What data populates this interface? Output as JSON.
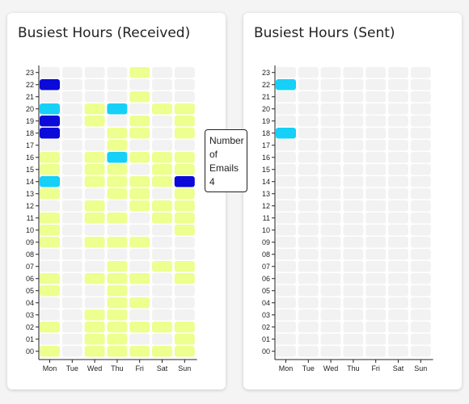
{
  "chart_data": [
    {
      "type": "heatmap",
      "title": "Busiest Hours (Received)",
      "x_categories": [
        "Mon",
        "Tue",
        "Wed",
        "Thu",
        "Fri",
        "Sat",
        "Sun"
      ],
      "y_categories": [
        "00",
        "01",
        "02",
        "03",
        "04",
        "05",
        "06",
        "07",
        "08",
        "09",
        "10",
        "11",
        "12",
        "13",
        "14",
        "15",
        "16",
        "17",
        "18",
        "19",
        "20",
        "21",
        "22",
        "23"
      ],
      "values": [
        [
          1,
          0,
          1,
          1,
          1,
          1,
          1
        ],
        [
          0,
          0,
          1,
          1,
          0,
          0,
          1
        ],
        [
          1,
          0,
          1,
          1,
          1,
          1,
          1
        ],
        [
          0,
          0,
          1,
          1,
          0,
          0,
          0
        ],
        [
          0,
          0,
          0,
          1,
          1,
          0,
          0
        ],
        [
          1,
          0,
          0,
          1,
          0,
          0,
          0
        ],
        [
          1,
          0,
          1,
          1,
          1,
          0,
          1
        ],
        [
          0,
          0,
          0,
          1,
          0,
          1,
          1
        ],
        [
          0,
          0,
          0,
          0,
          0,
          0,
          0
        ],
        [
          1,
          0,
          1,
          1,
          1,
          0,
          0
        ],
        [
          1,
          0,
          0,
          0,
          0,
          0,
          1
        ],
        [
          1,
          0,
          1,
          1,
          0,
          1,
          1
        ],
        [
          0,
          0,
          1,
          0,
          1,
          1,
          1
        ],
        [
          1,
          0,
          0,
          1,
          1,
          0,
          1
        ],
        [
          2,
          0,
          1,
          1,
          1,
          1,
          4
        ],
        [
          1,
          0,
          1,
          1,
          0,
          1,
          1
        ],
        [
          1,
          0,
          1,
          2,
          1,
          1,
          1
        ],
        [
          0,
          0,
          0,
          1,
          0,
          0,
          0
        ],
        [
          3,
          0,
          0,
          1,
          1,
          0,
          1
        ],
        [
          3,
          0,
          1,
          0,
          1,
          0,
          1
        ],
        [
          2,
          0,
          1,
          2,
          0,
          1,
          1
        ],
        [
          0,
          0,
          0,
          0,
          1,
          0,
          0
        ],
        [
          3,
          0,
          0,
          0,
          0,
          0,
          0
        ],
        [
          0,
          0,
          0,
          0,
          1,
          0,
          0
        ]
      ],
      "colors": {
        "empty": "#f2f2f2",
        "1": "#ecff8f",
        "2": "#16d0f7",
        "3": "#0b0ad9",
        "4": "#0b0ad9"
      },
      "grid": false
    },
    {
      "type": "heatmap",
      "title": "Busiest Hours (Sent)",
      "x_categories": [
        "Mon",
        "Tue",
        "Wed",
        "Thu",
        "Fri",
        "Sat",
        "Sun"
      ],
      "y_categories": [
        "00",
        "01",
        "02",
        "03",
        "04",
        "05",
        "06",
        "07",
        "08",
        "09",
        "10",
        "11",
        "12",
        "13",
        "14",
        "15",
        "16",
        "17",
        "18",
        "19",
        "20",
        "21",
        "22",
        "23"
      ],
      "values": [
        [
          0,
          0,
          0,
          0,
          0,
          0,
          0
        ],
        [
          0,
          0,
          0,
          0,
          0,
          0,
          0
        ],
        [
          0,
          0,
          0,
          0,
          0,
          0,
          0
        ],
        [
          0,
          0,
          0,
          0,
          0,
          0,
          0
        ],
        [
          0,
          0,
          0,
          0,
          0,
          0,
          0
        ],
        [
          0,
          0,
          0,
          0,
          0,
          0,
          0
        ],
        [
          0,
          0,
          0,
          0,
          0,
          0,
          0
        ],
        [
          0,
          0,
          0,
          0,
          0,
          0,
          0
        ],
        [
          0,
          0,
          0,
          0,
          0,
          0,
          0
        ],
        [
          0,
          0,
          0,
          0,
          0,
          0,
          0
        ],
        [
          0,
          0,
          0,
          0,
          0,
          0,
          0
        ],
        [
          0,
          0,
          0,
          0,
          0,
          0,
          0
        ],
        [
          0,
          0,
          0,
          0,
          0,
          0,
          0
        ],
        [
          0,
          0,
          0,
          0,
          0,
          0,
          0
        ],
        [
          0,
          0,
          0,
          0,
          0,
          0,
          0
        ],
        [
          0,
          0,
          0,
          0,
          0,
          0,
          0
        ],
        [
          0,
          0,
          0,
          0,
          0,
          0,
          0
        ],
        [
          0,
          0,
          0,
          0,
          0,
          0,
          0
        ],
        [
          2,
          0,
          0,
          0,
          0,
          0,
          0
        ],
        [
          0,
          0,
          0,
          0,
          0,
          0,
          0
        ],
        [
          0,
          0,
          0,
          0,
          0,
          0,
          0
        ],
        [
          0,
          0,
          0,
          0,
          0,
          0,
          0
        ],
        [
          2,
          0,
          0,
          0,
          0,
          0,
          0
        ],
        [
          0,
          0,
          0,
          0,
          0,
          0,
          0
        ]
      ],
      "colors": {
        "empty": "#f2f2f2",
        "1": "#ecff8f",
        "2": "#16d0f7",
        "3": "#0b0ad9",
        "4": "#0b0ad9"
      },
      "grid": false
    }
  ],
  "tooltip": {
    "line1": "Number",
    "line2": "of",
    "line3": "Emails",
    "value": "4"
  }
}
